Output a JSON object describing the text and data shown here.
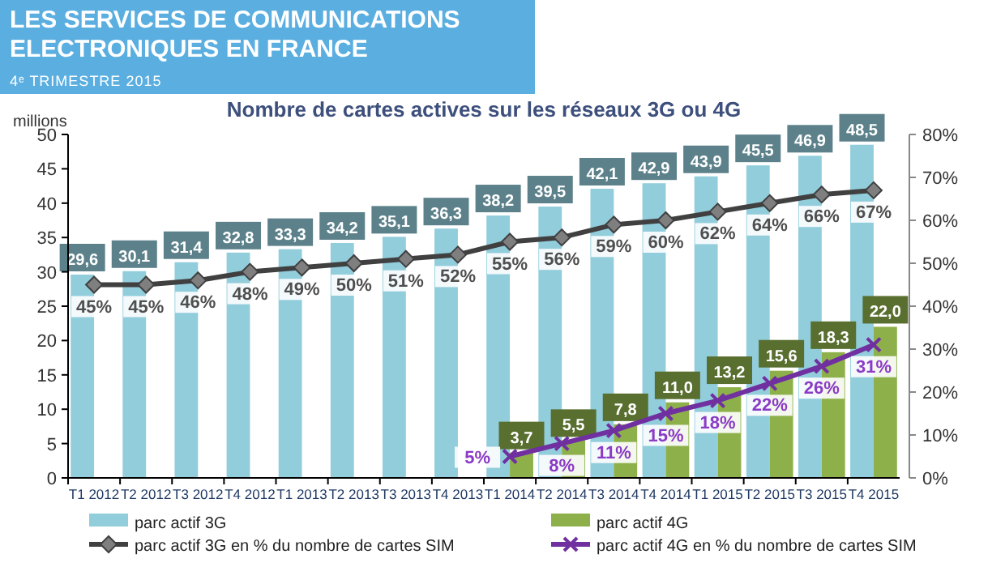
{
  "chart_data": {
    "type": "bar",
    "title": "Nombre de cartes actives sur les réseaux 3G ou 4G",
    "ylabel": "millions",
    "annotations": [
      "LES SERVICES DE COMMUNICATIONS ELECTRONIQUES EN FRANCE",
      "4ᵉ TRIMESTRE 2015"
    ],
    "categories": [
      "T1 2012",
      "T2 2012",
      "T3 2012",
      "T4 2012",
      "T1 2013",
      "T2 2013",
      "T3 2013",
      "T4 2013",
      "T1 2014",
      "T2 2014",
      "T3 2014",
      "T4 2014",
      "T1 2015",
      "T2 2015",
      "T3 2015",
      "T4 2015"
    ],
    "ylim": [
      0,
      50
    ],
    "yticks": [
      0,
      5,
      10,
      15,
      20,
      25,
      30,
      35,
      40,
      45,
      50
    ],
    "y2lim": [
      0,
      80
    ],
    "y2ticks": [
      {
        "value": 0,
        "label": "0%"
      },
      {
        "value": 10,
        "label": "10%"
      },
      {
        "value": 20,
        "label": "20%"
      },
      {
        "value": 30,
        "label": "30%"
      },
      {
        "value": 40,
        "label": "40%"
      },
      {
        "value": 50,
        "label": "50%"
      },
      {
        "value": 60,
        "label": "60%"
      },
      {
        "value": 70,
        "label": "70%"
      },
      {
        "value": 80,
        "label": "80%"
      }
    ],
    "grid": false,
    "legend": "bottom",
    "series": [
      {
        "name": "parc actif 3G",
        "color": "#92cddc",
        "values": [
          29.6,
          30.1,
          31.4,
          32.8,
          33.3,
          34.2,
          35.1,
          36.3,
          38.2,
          39.5,
          42.1,
          42.9,
          43.9,
          45.5,
          46.9,
          48.5
        ],
        "value_labels": [
          "29,6",
          "30,1",
          "31,4",
          "32,8",
          "33,3",
          "34,2",
          "35,1",
          "36,3",
          "38,2",
          "39,5",
          "42,1",
          "42,9",
          "43,9",
          "45,5",
          "46,9",
          "48,5"
        ]
      },
      {
        "name": "parc actif 4G",
        "color": "#8db04a",
        "values": [
          null,
          null,
          null,
          null,
          null,
          null,
          null,
          null,
          3.7,
          5.5,
          7.8,
          11.0,
          13.2,
          15.6,
          18.3,
          22.0
        ],
        "value_labels": [
          null,
          null,
          null,
          null,
          null,
          null,
          null,
          null,
          "3,7",
          "5,5",
          "7,8",
          "11,0",
          "13,2",
          "15,6",
          "18,3",
          "22,0"
        ]
      },
      {
        "name": "parc actif 3G en % du nombre de cartes SIM",
        "type": "line",
        "axis": "y2",
        "color": "#404040",
        "marker": "diamond",
        "values": [
          45,
          45,
          46,
          48,
          49,
          50,
          51,
          52,
          55,
          56,
          59,
          60,
          62,
          64,
          66,
          67
        ],
        "value_labels": [
          "45%",
          "45%",
          "46%",
          "48%",
          "49%",
          "50%",
          "51%",
          "52%",
          "55%",
          "56%",
          "59%",
          "60%",
          "62%",
          "64%",
          "66%",
          "67%"
        ]
      },
      {
        "name": "parc actif 4G en % du nombre de cartes SIM",
        "type": "line",
        "axis": "y2",
        "color": "#7030a0",
        "marker": "cross",
        "values": [
          null,
          null,
          null,
          null,
          null,
          null,
          null,
          null,
          5,
          8,
          11,
          15,
          18,
          22,
          26,
          31
        ],
        "value_labels": [
          null,
          null,
          null,
          null,
          null,
          null,
          null,
          null,
          "5%",
          "8%",
          "11%",
          "15%",
          "18%",
          "22%",
          "26%",
          "31%"
        ]
      }
    ]
  }
}
